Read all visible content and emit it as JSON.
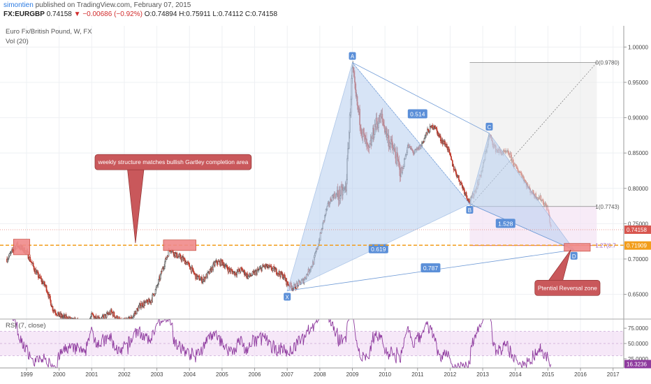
{
  "header": {
    "author": "simontien",
    "published_text": "published on TradingView.com, February 07, 2015",
    "symbol": "FX:EURGBP",
    "last": "0.74158",
    "change": "−0.00686 (−0.92%)",
    "ohlc": "O:0.74894 H:0.75911 L:0.74112 C:0.74158"
  },
  "legend": {
    "title": "Euro Fx/British Pound, W, FX",
    "vol": "Vol (20)",
    "rsi": "RSI (7, close)"
  },
  "colors": {
    "price_candle_up": "#3d3d3d",
    "pattern_fill": "#b8cff0",
    "pattern_line": "#6e9ad6",
    "label_bg": "#5b8fd8",
    "callout_bg": "#c9585b",
    "zone_fill": "#f08a8a",
    "support_line": "#f29d1b",
    "price_badge": "#d8564f",
    "rsi_line": "#8e3a9e",
    "rsi_band": "#f0d8f4"
  },
  "chart_data": {
    "type": "line",
    "subtype": "candlestick-weekly",
    "title": "Euro Fx/British Pound, W, FX",
    "x_ticks": [
      "1999",
      "2000",
      "2001",
      "2002",
      "2003",
      "2004",
      "2005",
      "2006",
      "2007",
      "2008",
      "2009",
      "2010",
      "2011",
      "2012",
      "2013",
      "2014",
      "2015",
      "2016",
      "2017"
    ],
    "y_ticks": [
      "1.00000",
      "0.95000",
      "0.90000",
      "0.85000",
      "0.80000",
      "0.75000",
      "0.70000",
      "0.65000"
    ],
    "ylim": [
      0.615,
      1.03
    ],
    "xlim": [
      1998.3,
      2017.6
    ],
    "price_path": [
      [
        1998.4,
        0.7
      ],
      [
        1998.7,
        0.72
      ],
      [
        1999.0,
        0.71
      ],
      [
        1999.3,
        0.68
      ],
      [
        1999.6,
        0.66
      ],
      [
        1999.8,
        0.63
      ],
      [
        2000.0,
        0.62
      ],
      [
        2000.3,
        0.615
      ],
      [
        2000.6,
        0.61
      ],
      [
        2000.8,
        0.6
      ],
      [
        2001.0,
        0.62
      ],
      [
        2001.3,
        0.615
      ],
      [
        2001.6,
        0.625
      ],
      [
        2001.9,
        0.61
      ],
      [
        2002.2,
        0.615
      ],
      [
        2002.5,
        0.635
      ],
      [
        2002.8,
        0.64
      ],
      [
        2003.0,
        0.66
      ],
      [
        2003.2,
        0.69
      ],
      [
        2003.4,
        0.715
      ],
      [
        2003.6,
        0.705
      ],
      [
        2003.8,
        0.7
      ],
      [
        2004.0,
        0.69
      ],
      [
        2004.2,
        0.675
      ],
      [
        2004.4,
        0.67
      ],
      [
        2004.6,
        0.68
      ],
      [
        2004.8,
        0.695
      ],
      [
        2005.0,
        0.695
      ],
      [
        2005.2,
        0.685
      ],
      [
        2005.4,
        0.68
      ],
      [
        2005.6,
        0.685
      ],
      [
        2005.8,
        0.675
      ],
      [
        2006.0,
        0.68
      ],
      [
        2006.3,
        0.69
      ],
      [
        2006.6,
        0.685
      ],
      [
        2006.9,
        0.675
      ],
      [
        2007.0,
        0.665
      ],
      [
        2007.2,
        0.66
      ],
      [
        2007.5,
        0.67
      ],
      [
        2007.8,
        0.695
      ],
      [
        2008.0,
        0.73
      ],
      [
        2008.2,
        0.77
      ],
      [
        2008.4,
        0.79
      ],
      [
        2008.6,
        0.79
      ],
      [
        2008.8,
        0.8
      ],
      [
        2008.9,
        0.88
      ],
      [
        2009.0,
        0.97
      ],
      [
        2009.1,
        0.93
      ],
      [
        2009.3,
        0.88
      ],
      [
        2009.5,
        0.85
      ],
      [
        2009.7,
        0.89
      ],
      [
        2009.9,
        0.9
      ],
      [
        2010.1,
        0.87
      ],
      [
        2010.3,
        0.85
      ],
      [
        2010.5,
        0.82
      ],
      [
        2010.7,
        0.86
      ],
      [
        2010.9,
        0.85
      ],
      [
        2011.1,
        0.86
      ],
      [
        2011.3,
        0.88
      ],
      [
        2011.5,
        0.89
      ],
      [
        2011.7,
        0.87
      ],
      [
        2011.9,
        0.86
      ],
      [
        2012.1,
        0.83
      ],
      [
        2012.3,
        0.81
      ],
      [
        2012.5,
        0.79
      ],
      [
        2012.6,
        0.78
      ],
      [
        2012.8,
        0.8
      ],
      [
        2013.0,
        0.83
      ],
      [
        2013.2,
        0.875
      ],
      [
        2013.4,
        0.855
      ],
      [
        2013.6,
        0.85
      ],
      [
        2013.8,
        0.85
      ],
      [
        2014.0,
        0.83
      ],
      [
        2014.2,
        0.82
      ],
      [
        2014.4,
        0.8
      ],
      [
        2014.6,
        0.79
      ],
      [
        2014.8,
        0.785
      ],
      [
        2015.0,
        0.77
      ],
      [
        2015.1,
        0.741
      ]
    ],
    "rsi": {
      "name": "RSI (7, close)",
      "ylim": [
        10,
        90
      ],
      "y_ticks": [
        "75.0000",
        "50.0000",
        "25.0000"
      ],
      "band": [
        30,
        70
      ],
      "last": 16.3236
    },
    "annotations": {
      "points": [
        {
          "label": "X",
          "x": 2007.0,
          "y": 0.655
        },
        {
          "label": "A",
          "x": 2009.0,
          "y": 0.978
        },
        {
          "label": "B",
          "x": 2012.6,
          "y": 0.778
        },
        {
          "label": "C",
          "x": 2013.2,
          "y": 0.878
        },
        {
          "label": "D",
          "x": 2015.8,
          "y": 0.713
        }
      ],
      "ratios": [
        {
          "text": "0.514",
          "x": 2011.0,
          "y": 0.905
        },
        {
          "text": "0.619",
          "x": 2009.8,
          "y": 0.714
        },
        {
          "text": "0.787",
          "x": 2011.4,
          "y": 0.687
        },
        {
          "text": "1.528",
          "x": 2013.7,
          "y": 0.75
        }
      ],
      "fib": [
        {
          "text": "0(0.9780)",
          "y": 0.978
        },
        {
          "text": "1(0.7743)",
          "y": 0.7743
        },
        {
          "text": "1.27(0.7",
          "y": 0.719
        }
      ],
      "support_level": 0.7195,
      "current_level": 0.7415,
      "price_badges": [
        {
          "text": "0.74158",
          "y": 0.7415
        },
        {
          "text": "0.71909",
          "y": 0.7191
        }
      ],
      "rsi_badge": "16.3236",
      "callout_main": "weekly structure matches bullish Gartley completion area",
      "callout_prz": "Ptential Reversal zone"
    }
  }
}
